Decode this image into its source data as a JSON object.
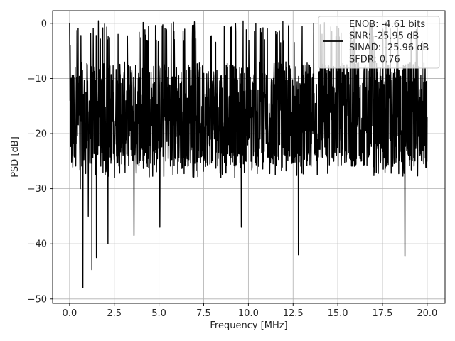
{
  "chart_data": {
    "type": "line",
    "title": "",
    "xlabel": "Frequency [MHz]",
    "ylabel": "PSD [dB]",
    "xlim": [
      -0.95,
      21.0
    ],
    "ylim": [
      -50.8,
      2.3
    ],
    "x_ticks": [
      0.0,
      2.5,
      5.0,
      7.5,
      10.0,
      12.5,
      15.0,
      17.5,
      20.0
    ],
    "x_tick_labels": [
      "0.0",
      "2.5",
      "5.0",
      "7.5",
      "10.0",
      "12.5",
      "15.0",
      "17.5",
      "20.0"
    ],
    "y_ticks": [
      0,
      -10,
      -20,
      -30,
      -40,
      -50
    ],
    "y_tick_labels": [
      "0",
      "−10",
      "−20",
      "−30",
      "−40",
      "−50"
    ],
    "grid": true,
    "legend_position": "top-right",
    "legend_entries": [
      "ENOB: -4.61 bits",
      "SNR: -25.95 dB",
      "SINAD: -25.96 dB",
      "SFDR: 0.76"
    ],
    "series": [
      {
        "color": "#000000",
        "x_range": [
          0.0,
          20.0
        ],
        "n_points": 1800,
        "upper_envelope_db": -3.5,
        "lower_envelope_db": -28.0,
        "peak": {
          "x": 0.0,
          "y": 0.0
        },
        "deep_nulls": [
          {
            "x": 0.6,
            "y": -30.0
          },
          {
            "x": 0.75,
            "y": -48.0
          },
          {
            "x": 1.05,
            "y": -35.0
          },
          {
            "x": 1.25,
            "y": -44.7
          },
          {
            "x": 1.5,
            "y": -42.5
          },
          {
            "x": 2.15,
            "y": -40.0
          },
          {
            "x": 3.6,
            "y": -38.5
          },
          {
            "x": 5.05,
            "y": -37.0
          },
          {
            "x": 9.6,
            "y": -37.0
          },
          {
            "x": 12.8,
            "y": -42.0
          },
          {
            "x": 18.75,
            "y": -42.3
          }
        ]
      }
    ]
  }
}
